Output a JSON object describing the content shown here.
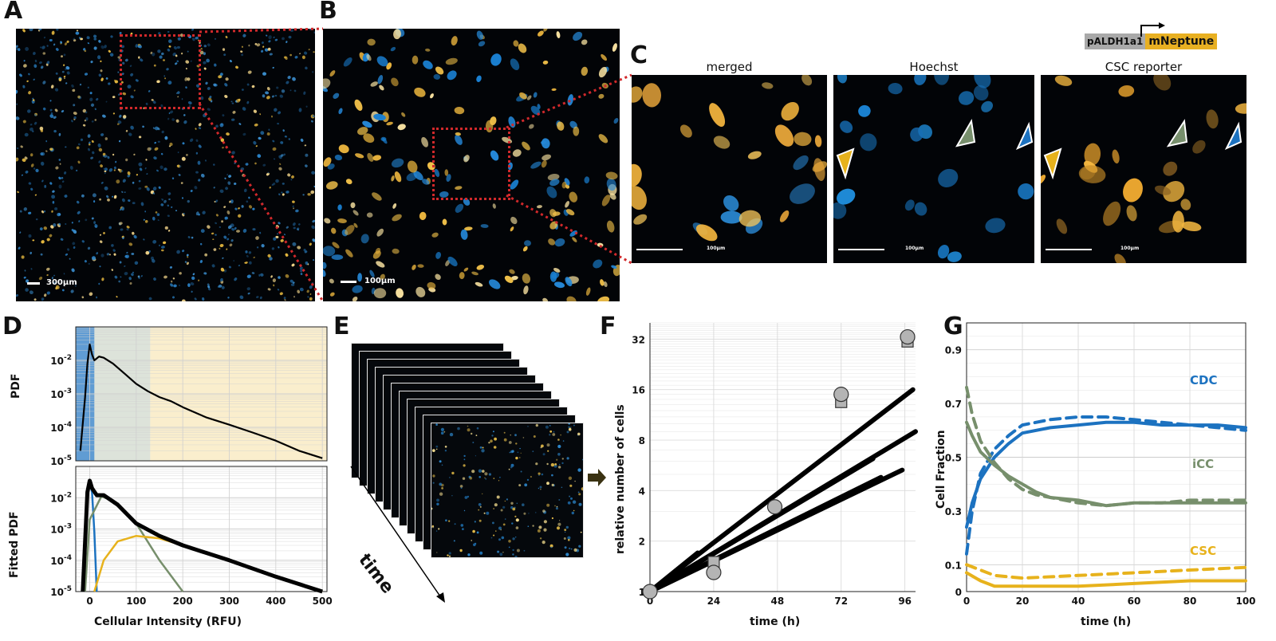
{
  "panel_labels": [
    "A",
    "B",
    "C",
    "D",
    "E",
    "F",
    "G"
  ],
  "colors": {
    "blue": "#1c72c0",
    "green": "#778f6c",
    "yellow": "#e7b21c",
    "grey": "#b4b4b4",
    "black": "#000000",
    "connector": "#d1292b"
  },
  "panel_a": {
    "scale_label": "300µm"
  },
  "panel_b": {
    "scale_label": "100µm"
  },
  "panel_c": {
    "reporter": {
      "promoter": "pALDH1a1",
      "gene": "mNeptune"
    },
    "channels": [
      {
        "title": "merged",
        "scale_label": "100µm"
      },
      {
        "title": "Hoechst",
        "scale_label": "100µm"
      },
      {
        "title": "CSC reporter",
        "scale_label": "100µm"
      }
    ],
    "arrowhead_colors": [
      "#e7b21c",
      "#778f6c",
      "#1c72c0"
    ]
  },
  "panel_e": {
    "time_label": "time"
  },
  "chart_data": [
    {
      "panel": "D-top",
      "type": "line",
      "xlabel": "",
      "ylabel": "PDF",
      "xlim": [
        -30,
        510
      ],
      "ylim": [
        1e-05,
        0.1
      ],
      "yscale": "log",
      "yticks": [
        "10-2",
        "10-3",
        "10-4",
        "10-5"
      ],
      "grid": true,
      "shaded_regions": [
        {
          "range": [
            -30,
            10
          ],
          "color": "#1c72c0"
        },
        {
          "range": [
            10,
            130
          ],
          "color": "#778f6c"
        },
        {
          "range": [
            130,
            510
          ],
          "color": "#e7b21c"
        }
      ],
      "series": [
        {
          "x": [
            -20,
            -10,
            -5,
            0,
            5,
            10,
            20,
            30,
            50,
            75,
            100,
            125,
            150,
            175,
            200,
            250,
            300,
            350,
            400,
            450,
            500
          ],
          "y": [
            2e-05,
            0.0008,
            0.008,
            0.03,
            0.015,
            0.01,
            0.013,
            0.012,
            0.008,
            0.004,
            0.002,
            0.0012,
            0.0008,
            0.0006,
            0.0004,
            0.0002,
            0.00012,
            7e-05,
            4e-05,
            2e-05,
            1.2e-05
          ]
        }
      ]
    },
    {
      "panel": "D-bottom",
      "type": "line",
      "xlabel": "Cellular Intensity (RFU)",
      "ylabel": "Fitted PDF",
      "xlim": [
        -30,
        510
      ],
      "ylim": [
        1e-05,
        0.1
      ],
      "yscale": "log",
      "xticks": [
        0,
        100,
        200,
        300,
        400,
        500
      ],
      "yticks": [
        "10-2",
        "10-3",
        "10-4",
        "10-5"
      ],
      "grid": true,
      "series": [
        {
          "color": "#1c72c0",
          "x": [
            -15,
            -10,
            -5,
            0,
            5,
            10,
            15
          ],
          "y": [
            1e-05,
            0.0008,
            0.015,
            0.03,
            0.015,
            0.0008,
            1e-05
          ]
        },
        {
          "color": "#778f6c",
          "x": [
            -10,
            0,
            25,
            50,
            100,
            150,
            200
          ],
          "y": [
            1e-05,
            0.002,
            0.011,
            0.008,
            0.0015,
            0.0001,
            1e-05
          ]
        },
        {
          "color": "#e7b21c",
          "x": [
            10,
            30,
            60,
            100,
            150,
            200,
            300,
            400,
            500
          ],
          "y": [
            1e-05,
            0.0001,
            0.0004,
            0.0006,
            0.0005,
            0.0003,
            0.0001,
            3e-05,
            1e-05
          ]
        },
        {
          "color": "#000000",
          "x": [
            -15,
            -5,
            0,
            5,
            15,
            30,
            60,
            100,
            150,
            200,
            300,
            400,
            500
          ],
          "y": [
            1e-05,
            0.015,
            0.035,
            0.02,
            0.012,
            0.012,
            0.006,
            0.0015,
            0.0006,
            0.0003,
            0.0001,
            3e-05,
            1e-05
          ]
        }
      ]
    },
    {
      "panel": "F",
      "type": "line",
      "xlabel": "time (h)",
      "ylabel": "relative number of cells",
      "xlim": [
        0,
        100
      ],
      "ylim": [
        1,
        40
      ],
      "yscale": "log2",
      "xticks": [
        0,
        24,
        48,
        72,
        96
      ],
      "yticks": [
        1,
        2,
        4,
        8,
        16,
        32
      ],
      "grid": true,
      "series": [
        {
          "x": [
            0,
            99
          ],
          "y": [
            1,
            16
          ]
        },
        {
          "x": [
            0,
            100
          ],
          "y": [
            1,
            9
          ]
        },
        {
          "x": [
            0,
            84
          ],
          "y": [
            1,
            6.2
          ]
        },
        {
          "x": [
            0,
            87
          ],
          "y": [
            1,
            4.8
          ]
        },
        {
          "x": [
            0,
            95
          ],
          "y": [
            1,
            5.3
          ]
        },
        {
          "x": [
            0,
            18
          ],
          "y": [
            1,
            1.7
          ]
        }
      ],
      "markers_circle": [
        {
          "x": 0,
          "y": 1
        },
        {
          "x": 24,
          "y": 1.3
        },
        {
          "x": 47,
          "y": 3.2
        },
        {
          "x": 72,
          "y": 15
        },
        {
          "x": 97,
          "y": 33
        }
      ],
      "markers_square": [
        {
          "x": 24,
          "y": 1.5
        },
        {
          "x": 72,
          "y": 13.5
        },
        {
          "x": 97,
          "y": 31
        }
      ]
    },
    {
      "panel": "G",
      "type": "line",
      "xlabel": "time (h)",
      "ylabel": "Cell Fraction",
      "xlim": [
        0,
        100
      ],
      "ylim": [
        0,
        1
      ],
      "xticks": [
        0,
        20,
        40,
        60,
        80,
        100
      ],
      "yticks": [
        0,
        0.1,
        0.3,
        0.5,
        0.7,
        0.9
      ],
      "grid": true,
      "series": [
        {
          "name": "CDC",
          "color": "#1c72c0",
          "x": [
            0,
            2,
            5,
            10,
            15,
            20,
            30,
            40,
            50,
            60,
            70,
            80,
            90,
            100
          ],
          "y": [
            0.24,
            0.33,
            0.42,
            0.5,
            0.55,
            0.59,
            0.61,
            0.62,
            0.63,
            0.63,
            0.62,
            0.62,
            0.62,
            0.61
          ]
        },
        {
          "name": "",
          "color": "#1c72c0",
          "dashed": true,
          "x": [
            0,
            2,
            5,
            10,
            15,
            20,
            30,
            40,
            50,
            60,
            70,
            80,
            90,
            100
          ],
          "y": [
            0.14,
            0.3,
            0.44,
            0.53,
            0.58,
            0.62,
            0.64,
            0.65,
            0.65,
            0.64,
            0.63,
            0.62,
            0.61,
            0.6
          ]
        },
        {
          "name": "iCC",
          "color": "#778f6c",
          "x": [
            0,
            2,
            5,
            10,
            15,
            20,
            25,
            30,
            40,
            50,
            60,
            70,
            80,
            90,
            100
          ],
          "y": [
            0.63,
            0.58,
            0.52,
            0.47,
            0.43,
            0.4,
            0.37,
            0.35,
            0.34,
            0.32,
            0.33,
            0.33,
            0.33,
            0.33,
            0.33
          ]
        },
        {
          "name": "",
          "color": "#778f6c",
          "dashed": true,
          "x": [
            0,
            2,
            5,
            10,
            15,
            20,
            25,
            30,
            40,
            50,
            60,
            70,
            80,
            90,
            100
          ],
          "y": [
            0.76,
            0.66,
            0.56,
            0.48,
            0.42,
            0.38,
            0.36,
            0.35,
            0.33,
            0.32,
            0.33,
            0.33,
            0.34,
            0.34,
            0.34
          ]
        },
        {
          "name": "CSC",
          "color": "#e7b21c",
          "x": [
            0,
            5,
            10,
            20,
            40,
            60,
            80,
            100
          ],
          "y": [
            0.07,
            0.04,
            0.02,
            0.02,
            0.02,
            0.03,
            0.04,
            0.04
          ]
        },
        {
          "name": "",
          "color": "#e7b21c",
          "dashed": true,
          "x": [
            0,
            5,
            10,
            20,
            40,
            60,
            80,
            100
          ],
          "y": [
            0.1,
            0.08,
            0.06,
            0.05,
            0.06,
            0.07,
            0.08,
            0.09
          ]
        }
      ]
    }
  ]
}
